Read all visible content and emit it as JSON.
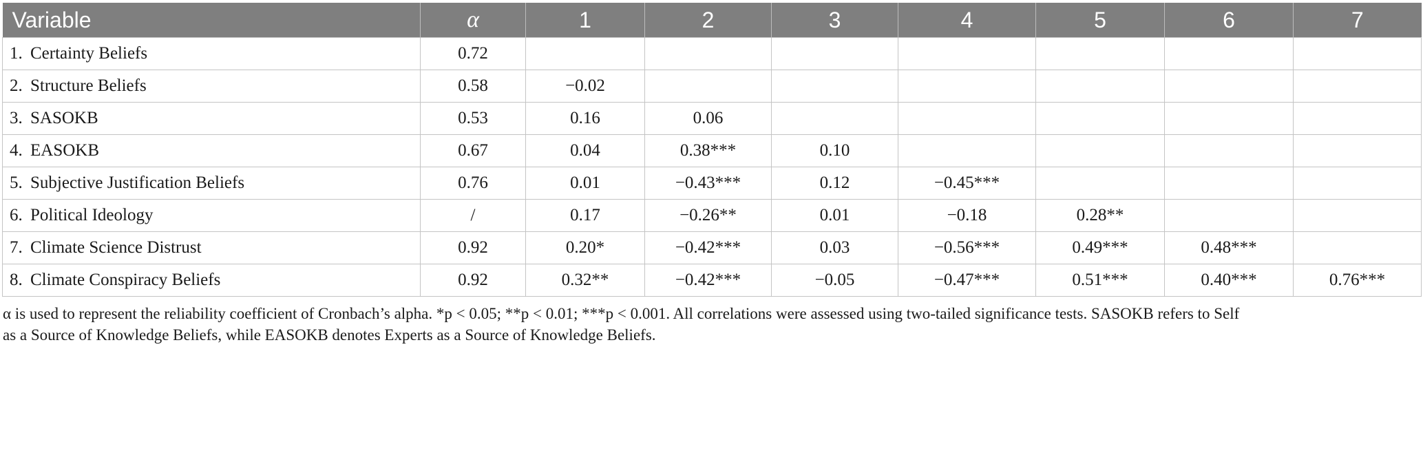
{
  "table": {
    "headers": [
      "Variable",
      "α",
      "1",
      "2",
      "3",
      "4",
      "5",
      "6",
      "7"
    ],
    "rows": [
      {
        "num": "1.",
        "label": "Certainty Beliefs",
        "alpha": "0.72",
        "values": [
          "",
          "",
          "",
          "",
          "",
          "",
          ""
        ]
      },
      {
        "num": "2.",
        "label": "Structure Beliefs",
        "alpha": "0.58",
        "values": [
          "−0.02",
          "",
          "",
          "",
          "",
          "",
          ""
        ]
      },
      {
        "num": "3.",
        "label": "SASOKB",
        "alpha": "0.53",
        "values": [
          "0.16",
          "0.06",
          "",
          "",
          "",
          "",
          ""
        ]
      },
      {
        "num": "4.",
        "label": "EASOKB",
        "alpha": "0.67",
        "values": [
          "0.04",
          "0.38***",
          "0.10",
          "",
          "",
          "",
          ""
        ]
      },
      {
        "num": "5.",
        "label": "Subjective Justification Beliefs",
        "alpha": "0.76",
        "values": [
          "0.01",
          "−0.43***",
          "0.12",
          "−0.45***",
          "",
          "",
          ""
        ]
      },
      {
        "num": "6.",
        "label": "Political Ideology",
        "alpha": "/",
        "values": [
          "0.17",
          "−0.26**",
          "0.01",
          "−0.18",
          "0.28**",
          "",
          ""
        ]
      },
      {
        "num": "7.",
        "label": "Climate Science Distrust",
        "alpha": "0.92",
        "values": [
          "0.20*",
          "−0.42***",
          "0.03",
          "−0.56***",
          "0.49***",
          "0.48***",
          ""
        ]
      },
      {
        "num": "8.",
        "label": "Climate Conspiracy Beliefs",
        "alpha": "0.92",
        "values": [
          "0.32**",
          "−0.42***",
          "−0.05",
          "−0.47***",
          "0.51***",
          "0.40***",
          "0.76***"
        ]
      }
    ]
  },
  "note": {
    "line1": "α is used to represent the reliability coefficient of Cronbach’s alpha. *p < 0.05; **p < 0.01; ***p < 0.001. All correlations were assessed using two-tailed significance tests. SASOKB refers to Self",
    "line2": "as a Source of Knowledge Beliefs, while EASOKB denotes Experts as a Source of Knowledge Beliefs."
  }
}
